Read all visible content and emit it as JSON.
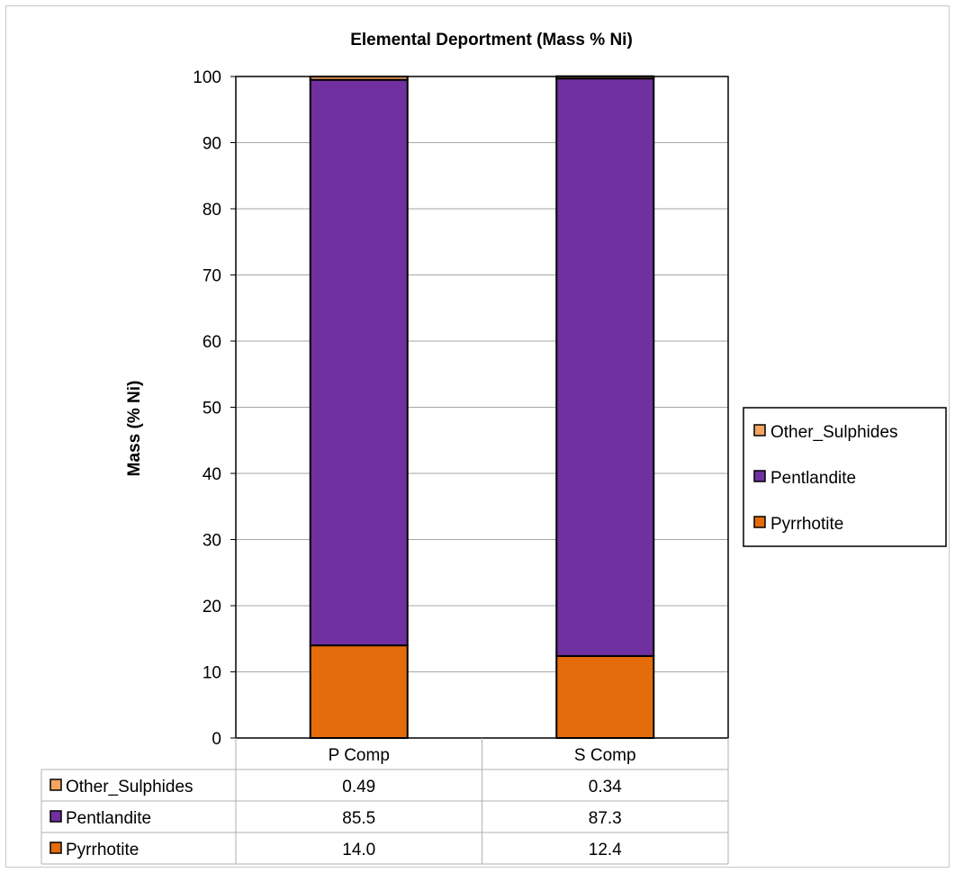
{
  "chart_data": {
    "type": "bar",
    "stacked": true,
    "title": "Elemental Deportment (Mass % Ni)",
    "xlabel": "",
    "ylabel": "Mass (% Ni)",
    "ylim": [
      0,
      100
    ],
    "yticks": [
      0,
      10,
      20,
      30,
      40,
      50,
      60,
      70,
      80,
      90,
      100
    ],
    "grid": true,
    "legend_position": "right",
    "categories": [
      "P Comp",
      "S Comp"
    ],
    "series": [
      {
        "name": "Pyrrhotite",
        "values": [
          14.0,
          12.4
        ],
        "color": "#e46c0a"
      },
      {
        "name": "Pentlandite",
        "values": [
          85.5,
          87.3
        ],
        "color": "#7030a0"
      },
      {
        "name": "Other_Sulphides",
        "values": [
          0.49,
          0.34
        ],
        "color": "#f4a460"
      }
    ],
    "data_table": {
      "rows": [
        {
          "name": "Other_Sulphides",
          "values": [
            "0.49",
            "0.34"
          ]
        },
        {
          "name": "Pentlandite",
          "values": [
            "85.5",
            "87.3"
          ]
        },
        {
          "name": "Pyrrhotite",
          "values": [
            "14.0",
            "12.4"
          ]
        }
      ]
    },
    "legend": [
      "Other_Sulphides",
      "Pentlandite",
      "Pyrrhotite"
    ]
  }
}
